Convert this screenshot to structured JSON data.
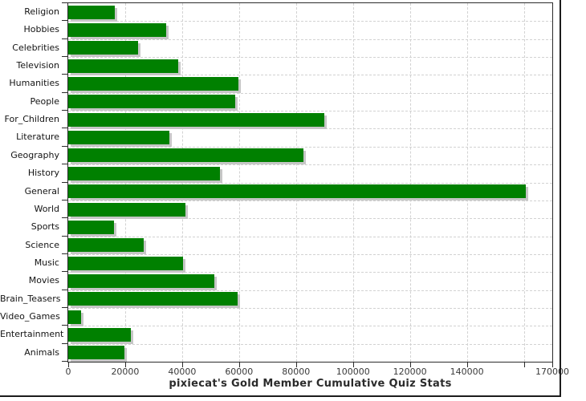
{
  "chart_data": {
    "type": "bar",
    "orientation": "horizontal",
    "title": "pixiecat's Gold Member Cumulative Quiz Stats",
    "categories": [
      "Religion",
      "Hobbies",
      "Celebrities",
      "Television",
      "Humanities",
      "People",
      "For_Children",
      "Literature",
      "Geography",
      "History",
      "General",
      "World",
      "Sports",
      "Science",
      "Music",
      "Movies",
      "Brain_Teasers",
      "Video_Games",
      "Entertainment",
      "Animals"
    ],
    "values": [
      16400,
      34300,
      24500,
      38700,
      59900,
      58500,
      90000,
      35400,
      82500,
      53200,
      160800,
      41200,
      16200,
      26500,
      40400,
      51300,
      59600,
      4500,
      22000,
      19800
    ],
    "xlim": [
      0,
      170000
    ],
    "x_ticks": [
      {
        "value": 0,
        "label": "0"
      },
      {
        "value": 20000,
        "label": "20000"
      },
      {
        "value": 40000,
        "label": "40000"
      },
      {
        "value": 60000,
        "label": "60000"
      },
      {
        "value": 80000,
        "label": "80000"
      },
      {
        "value": 100000,
        "label": "100000"
      },
      {
        "value": 120000,
        "label": "120000"
      },
      {
        "value": 140000,
        "label": "140000"
      },
      {
        "value": 160000,
        "label": ""
      },
      {
        "value": 170000,
        "label": "170000"
      }
    ],
    "grid": "dashed",
    "legend": "none",
    "colors": {
      "bar": "#008000",
      "bar_shadow": "#c6c6c6",
      "gridline": "#d2d2d2",
      "frame": "#2b2b2b",
      "label_text": "#141414",
      "tick_text": "#3a3a3a",
      "title_text": "#2b2b2b"
    }
  }
}
